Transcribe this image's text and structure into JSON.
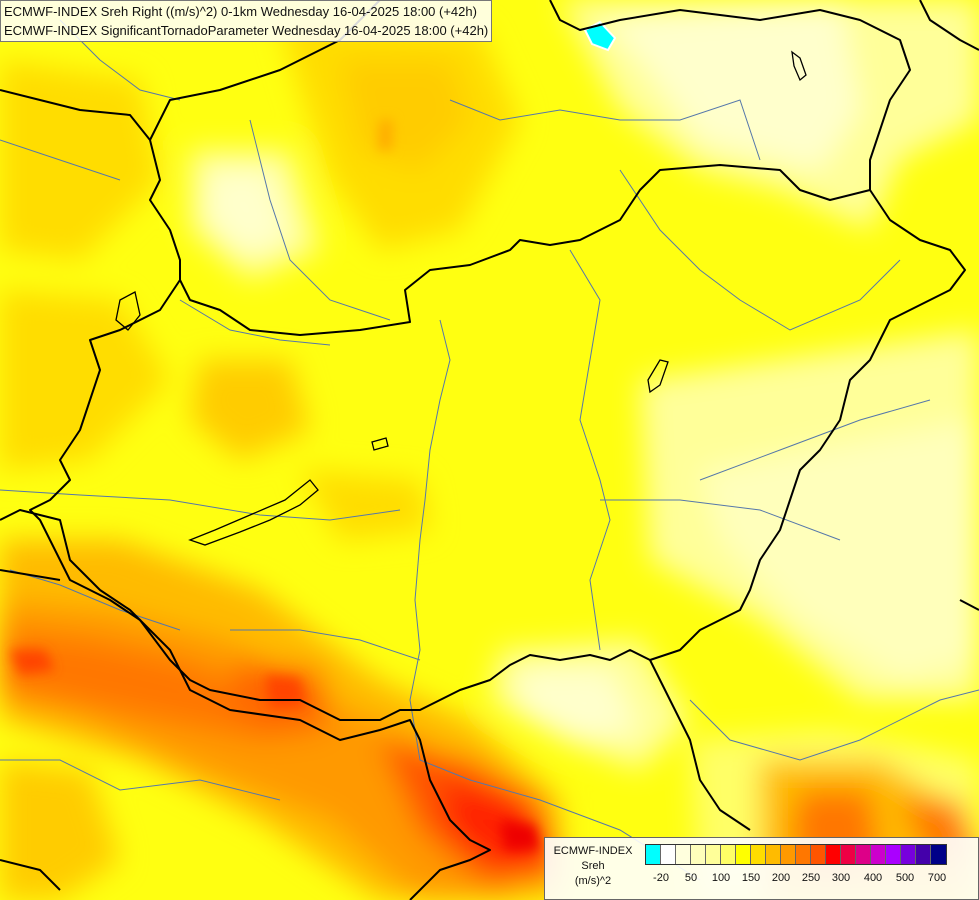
{
  "header": {
    "line1": "ECMWF-INDEX Sreh Right ((m/s)^2) 0-1km Wednesday 16-04-2025 18:00 (+42h)",
    "line2": "ECMWF-INDEX SignificantTornadoParameter Wednesday 16-04-2025 18:00 (+42h)"
  },
  "legend": {
    "title": "ECMWF-INDEX",
    "variable": "Sreh",
    "unit": "(m/s)^2",
    "colors": [
      "#00ffff",
      "#ffffff",
      "#ffffdd",
      "#ffffbb",
      "#ffff99",
      "#ffff66",
      "#ffff00",
      "#ffdd00",
      "#ffbb00",
      "#ff9900",
      "#ff7700",
      "#ff5500",
      "#ff0000",
      "#ee0044",
      "#dd0088",
      "#cc00cc",
      "#aa00ff",
      "#7700dd",
      "#4400aa",
      "#000088"
    ],
    "ticks": [
      "-20",
      "50",
      "100",
      "150",
      "200",
      "250",
      "300",
      "400",
      "500",
      "700"
    ]
  },
  "map": {
    "field_colors": {
      "pale": "#ffffcc",
      "light": "#ffff99",
      "yellow": "#ffff00",
      "gold": "#ffdd00",
      "orange": "#ffaa00",
      "dark_orange": "#ff8800",
      "red_orange": "#ff5500",
      "red": "#ff2200",
      "cyan": "#00ffff"
    },
    "border_color": "#000000",
    "river_color": "#5577aa"
  }
}
